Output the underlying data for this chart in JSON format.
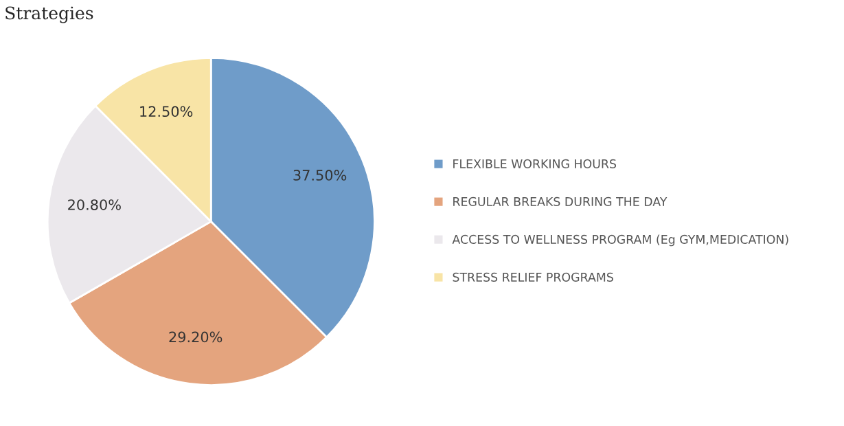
{
  "chart_data": {
    "type": "pie",
    "title": "Strategies",
    "categories": [
      "FLEXIBLE WORKING HOURS",
      "REGULAR BREAKS DURING THE DAY",
      "ACCESS TO WELLNESS PROGRAM (Eg GYM,MEDICATION)",
      "STRESS RELIEF PROGRAMS"
    ],
    "values": [
      37.5,
      29.2,
      20.8,
      12.5
    ],
    "colors": [
      "#6f9cc9",
      "#e4a47e",
      "#ebe8ec",
      "#f8e4a6"
    ],
    "value_labels": [
      "37.50%",
      "29.20%",
      "20.80%",
      "12.50%"
    ],
    "legend": "right"
  }
}
